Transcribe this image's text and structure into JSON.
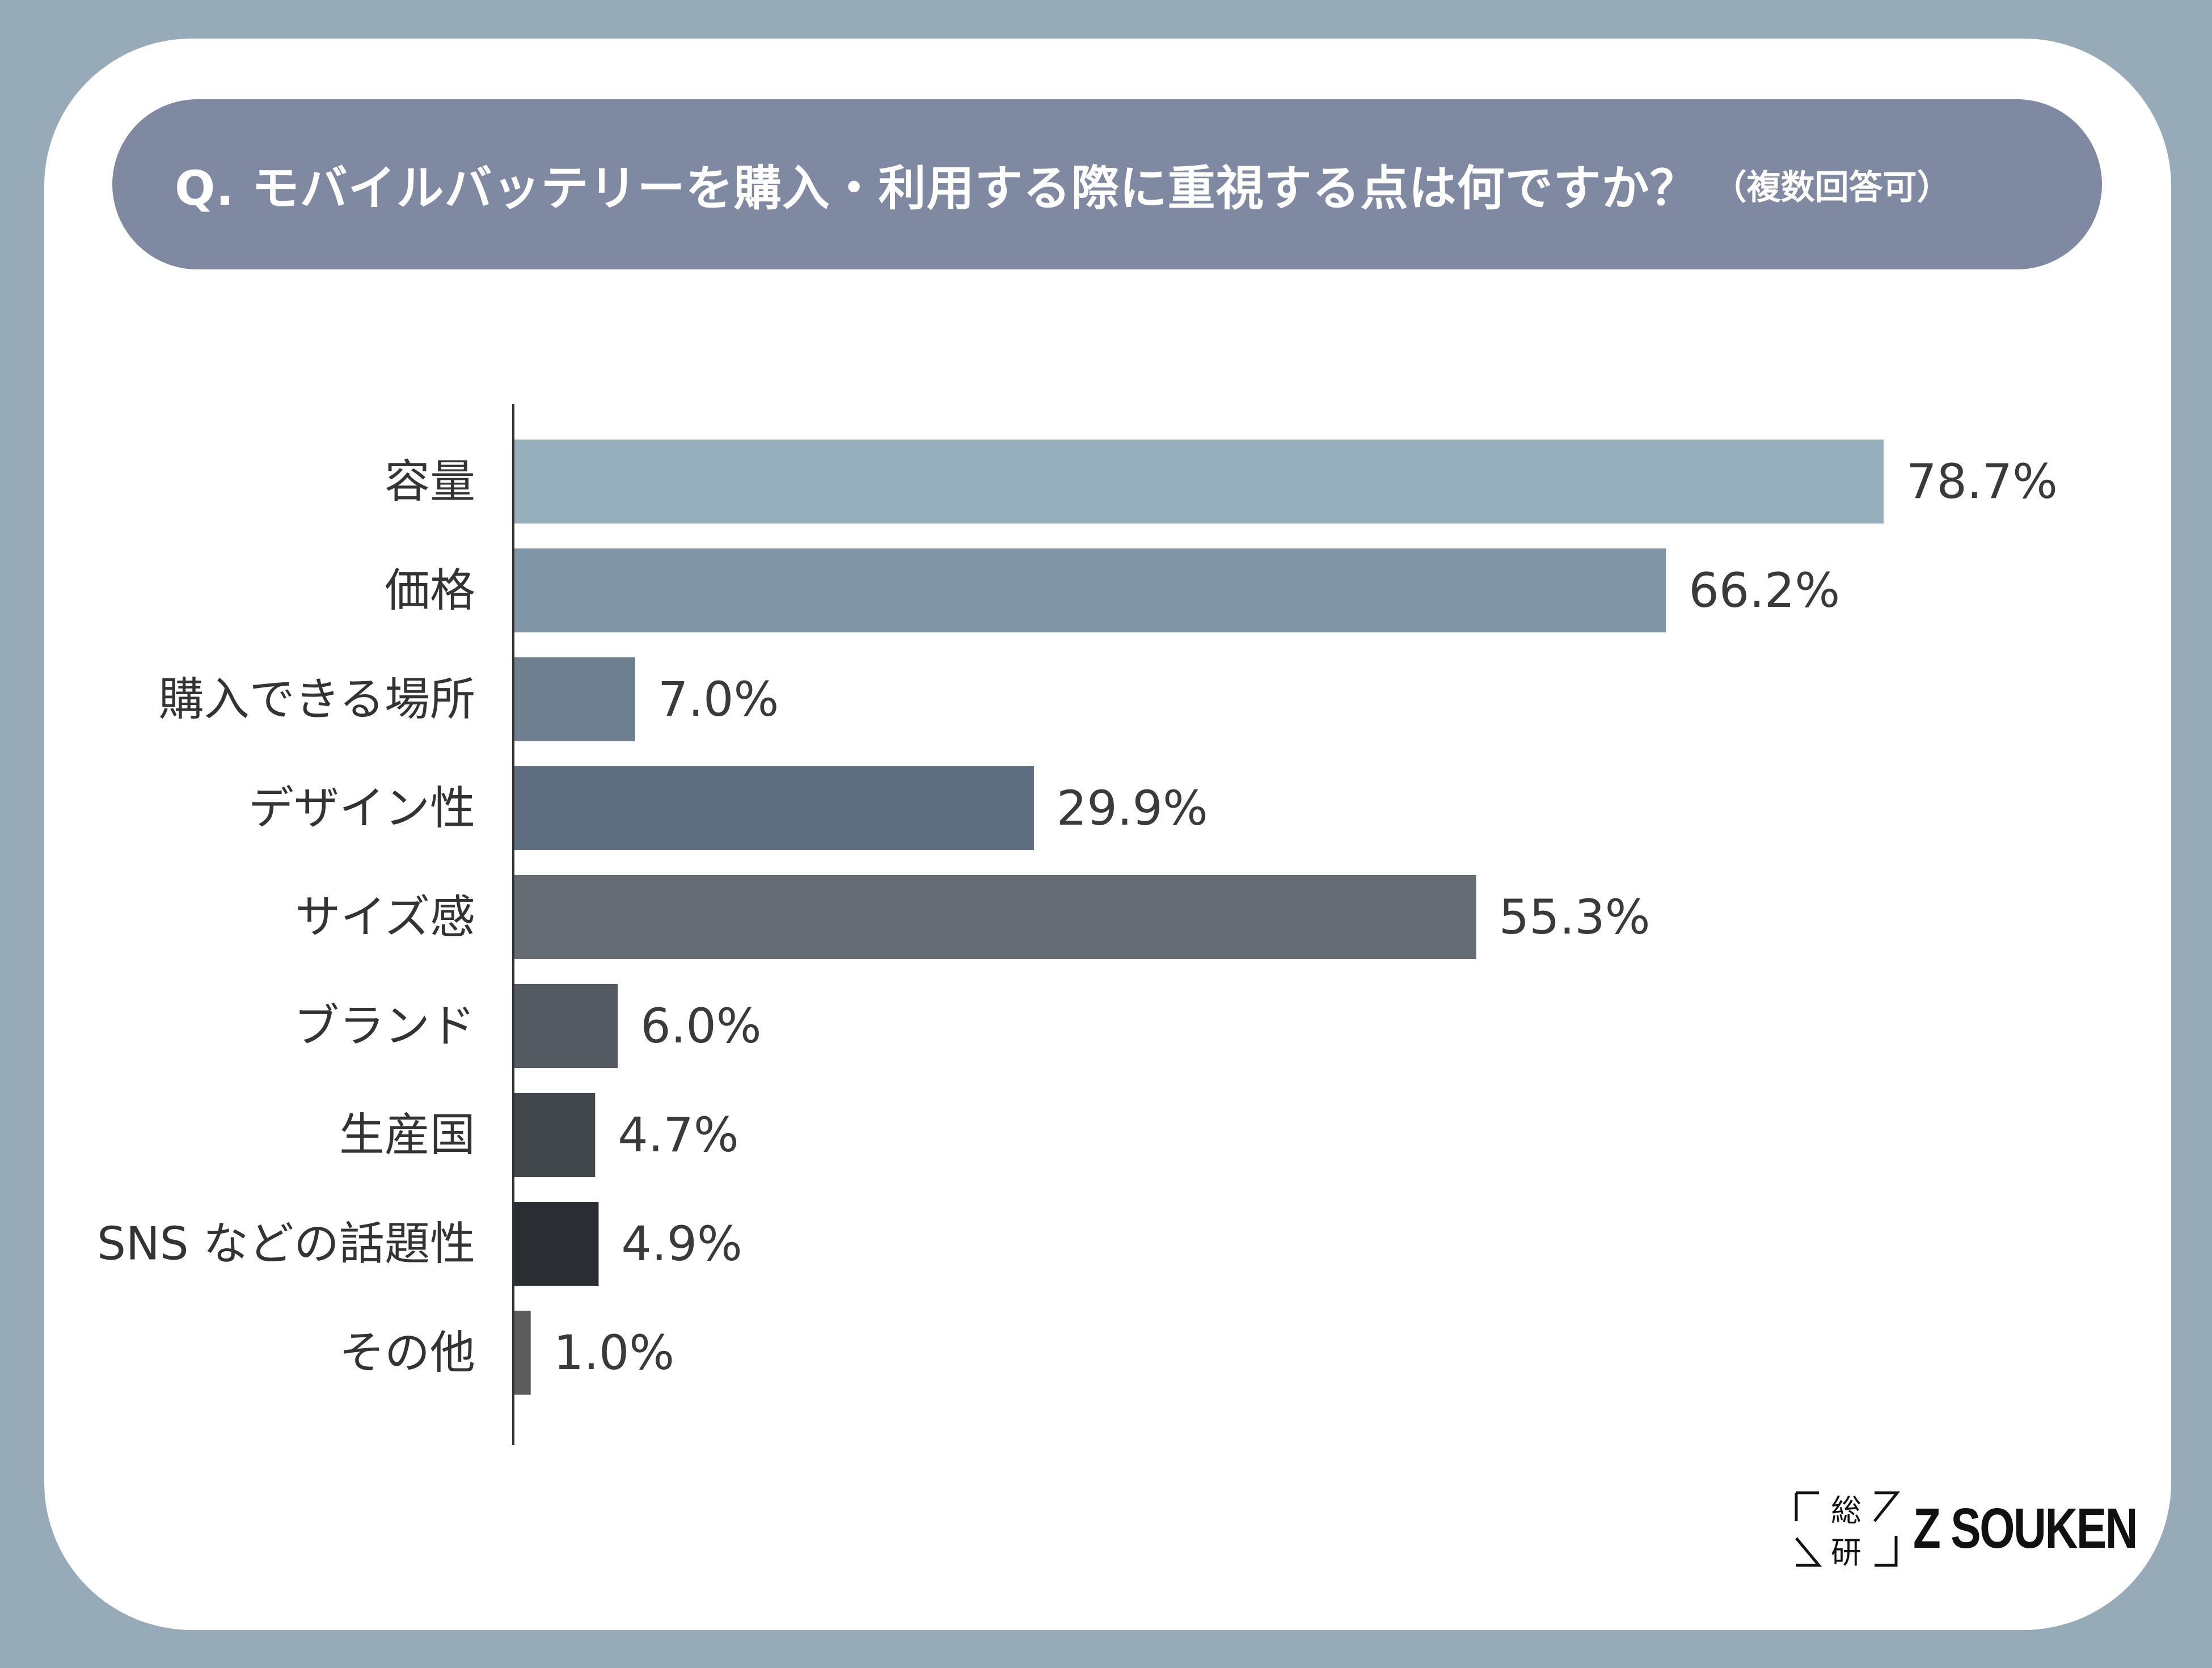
{
  "title": {
    "main": "Q. モバイルバッテリーを購入・利用する際に重視する点は何ですか？",
    "sub": "（複数回答可）"
  },
  "chart_data": {
    "type": "bar",
    "orientation": "horizontal",
    "title": "Q. モバイルバッテリーを購入・利用する際に重視する点は何ですか？（複数回答可）",
    "xlabel": "",
    "ylabel": "",
    "xlim": [
      0,
      100
    ],
    "unit": "%",
    "categories": [
      "容量",
      "価格",
      "購入できる場所",
      "デザイン性",
      "サイズ感",
      "ブランド",
      "生産国",
      "SNS などの話題性",
      "その他"
    ],
    "values": [
      78.7,
      66.2,
      7.0,
      29.9,
      55.3,
      6.0,
      4.7,
      4.9,
      1.0
    ],
    "value_labels": [
      "78.7%",
      "66.2%",
      "7.0%",
      "29.9%",
      "55.3%",
      "6.0%",
      "4.7%",
      "4.9%",
      "1.0%"
    ],
    "bar_colors": [
      "#97aebc",
      "#8096a6",
      "#6e7f90",
      "#5e6e80",
      "#656c74",
      "#545a61",
      "#42474c",
      "#2a2d31",
      "#5d5d5d"
    ]
  },
  "logo": {
    "jp_chars": [
      "総",
      "研"
    ],
    "en": "Z SOUKEN"
  }
}
